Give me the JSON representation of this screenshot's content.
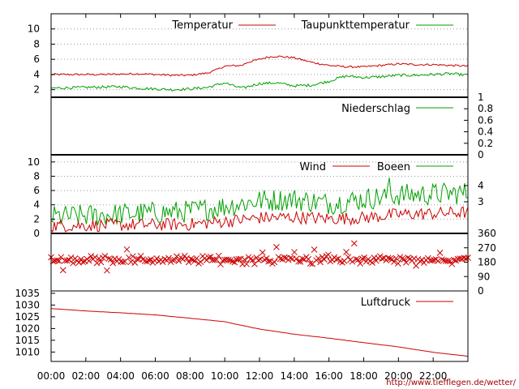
{
  "credit": "http://www.tiefflegen.de/wetter/",
  "colors": {
    "red": "#cc0000",
    "green": "#00a000",
    "grid": "#999999",
    "axis": "#000000"
  },
  "chart_data": [
    {
      "type": "line",
      "ylim": [
        1,
        12
      ],
      "yticks": [
        "2",
        "4",
        "6",
        "8",
        "10"
      ],
      "grid": true,
      "legend_placement": "top-right",
      "series": [
        {
          "name": "Temperatur",
          "color": "red",
          "keypoints": [
            [
              0,
              4.0
            ],
            [
              3,
              4.0
            ],
            [
              5,
              4.1
            ],
            [
              7,
              3.9
            ],
            [
              8,
              3.9
            ],
            [
              9,
              4.2
            ],
            [
              9.5,
              4.6
            ],
            [
              10,
              5.1
            ],
            [
              11,
              5.2
            ],
            [
              11.3,
              5.6
            ],
            [
              12,
              6.0
            ],
            [
              12.5,
              6.3
            ],
            [
              13,
              6.4
            ],
            [
              14,
              6.2
            ],
            [
              15,
              5.6
            ],
            [
              16,
              5.2
            ],
            [
              17,
              5.0
            ],
            [
              18,
              5.0
            ],
            [
              19,
              5.2
            ],
            [
              20,
              5.4
            ],
            [
              21,
              5.3
            ],
            [
              22,
              5.3
            ],
            [
              23,
              5.2
            ],
            [
              24,
              5.1
            ]
          ]
        },
        {
          "name": "Taupunkttemperatur",
          "color": "green",
          "keypoints": [
            [
              0,
              2.2
            ],
            [
              2,
              2.3
            ],
            [
              4,
              2.4
            ],
            [
              5,
              2.2
            ],
            [
              7,
              2.0
            ],
            [
              8,
              2.1
            ],
            [
              9,
              2.3
            ],
            [
              10,
              2.9
            ],
            [
              10.5,
              2.5
            ],
            [
              11,
              2.2
            ],
            [
              12,
              2.8
            ],
            [
              13,
              2.9
            ],
            [
              14,
              2.5
            ],
            [
              15,
              2.6
            ],
            [
              16,
              3.1
            ],
            [
              16.5,
              3.5
            ],
            [
              17,
              3.8
            ],
            [
              18,
              3.6
            ],
            [
              19,
              3.7
            ],
            [
              20,
              3.9
            ],
            [
              21,
              3.9
            ],
            [
              22,
              4.0
            ],
            [
              23,
              4.1
            ],
            [
              24,
              3.9
            ]
          ]
        }
      ]
    },
    {
      "type": "line",
      "ylim": [
        0,
        1
      ],
      "yticks": [
        "0",
        "0.2",
        "0.4",
        "0.6",
        "0.8",
        "1"
      ],
      "series": [
        {
          "name": "Niederschlag",
          "color": "green",
          "keypoints": [
            [
              0,
              0
            ],
            [
              24,
              0
            ]
          ]
        }
      ]
    },
    {
      "type": "line",
      "ylim": [
        0,
        11
      ],
      "yticks": [
        "0",
        "2",
        "4",
        "6",
        "8",
        "10"
      ],
      "right_ticks": [
        "3",
        "4"
      ],
      "grid": true,
      "legend_placement": "top-right",
      "series": [
        {
          "name": "Wind",
          "color": "red",
          "keypoints": [
            [
              0,
              0.8
            ],
            [
              4,
              0.9
            ],
            [
              8,
              1.0
            ],
            [
              10,
              1.4
            ],
            [
              12,
              1.9
            ],
            [
              14,
              2.0
            ],
            [
              16,
              1.8
            ],
            [
              18,
              1.9
            ],
            [
              20,
              2.4
            ],
            [
              22,
              2.5
            ],
            [
              24,
              2.7
            ]
          ]
        },
        {
          "name": "Boeen",
          "color": "green",
          "keypoints": [
            [
              0,
              1.8
            ],
            [
              4,
              2.2
            ],
            [
              8,
              2.6
            ],
            [
              10,
              3.3
            ],
            [
              12,
              4.1
            ],
            [
              14,
              4.3
            ],
            [
              16,
              3.7
            ],
            [
              18,
              4.3
            ],
            [
              20,
              4.9
            ],
            [
              22,
              5.0
            ],
            [
              24,
              5.2
            ]
          ]
        }
      ]
    },
    {
      "type": "scatter",
      "ylim": [
        0,
        360
      ],
      "right_ticks": [
        "0",
        "90",
        "180",
        "270",
        "360"
      ],
      "series": [
        {
          "color": "red",
          "marker": "x",
          "center": 195,
          "spread": 25
        }
      ]
    },
    {
      "type": "line",
      "ylim": [
        1006,
        1036
      ],
      "yticks": [
        "1010",
        "1015",
        "1020",
        "1025",
        "1030",
        "1035"
      ],
      "series": [
        {
          "name": "Luftdruck",
          "color": "red",
          "keypoints": [
            [
              0,
              1028.5
            ],
            [
              2,
              1027.5
            ],
            [
              4,
              1026.7
            ],
            [
              6,
              1025.8
            ],
            [
              8,
              1024.4
            ],
            [
              10,
              1022.9
            ],
            [
              11,
              1021.3
            ],
            [
              12,
              1019.8
            ],
            [
              14,
              1017.6
            ],
            [
              16,
              1015.9
            ],
            [
              18,
              1014.0
            ],
            [
              20,
              1012.2
            ],
            [
              22,
              1009.9
            ],
            [
              24,
              1008.2
            ]
          ]
        }
      ]
    }
  ],
  "x_ticks": [
    "00:00",
    "02:00",
    "04:00",
    "06:00",
    "08:00",
    "10:00",
    "12:00",
    "14:00",
    "16:00",
    "18:00",
    "20:00",
    "22:00"
  ]
}
